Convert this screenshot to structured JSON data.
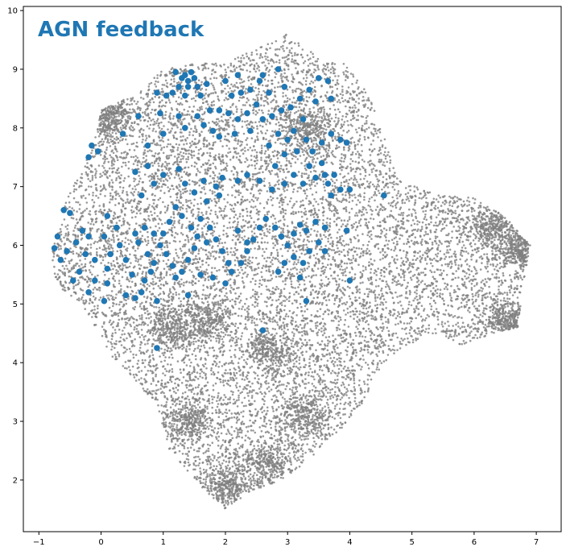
{
  "chart_data": {
    "type": "scatter",
    "title": "AGN feedback",
    "xlabel": "",
    "ylabel": "",
    "xlim": [
      -1.25,
      7.4
    ],
    "ylim": [
      1.12,
      10.07
    ],
    "x_ticks": [
      -1,
      0,
      1,
      2,
      3,
      4,
      5,
      6,
      7
    ],
    "y_ticks": [
      2,
      3,
      4,
      5,
      6,
      7,
      8,
      9,
      10
    ],
    "grid": false,
    "legend": "none",
    "colors": {
      "background_points": "#808080",
      "highlight_points": "#1f77b4",
      "title": "#1f77b4"
    },
    "series": [
      {
        "role": "background",
        "point_count_approx": 30000,
        "region_outline": [
          [
            -0.8,
            5.8
          ],
          [
            -0.6,
            6.7
          ],
          [
            -0.3,
            7.3
          ],
          [
            -0.1,
            7.8
          ],
          [
            0.0,
            8.3
          ],
          [
            0.6,
            8.6
          ],
          [
            1.0,
            9.0
          ],
          [
            1.5,
            9.1
          ],
          [
            2.0,
            9.1
          ],
          [
            2.6,
            9.4
          ],
          [
            3.0,
            9.6
          ],
          [
            3.5,
            9.2
          ],
          [
            3.9,
            9.1
          ],
          [
            4.3,
            8.6
          ],
          [
            4.6,
            7.7
          ],
          [
            4.8,
            7.1
          ],
          [
            5.3,
            6.9
          ],
          [
            6.0,
            6.8
          ],
          [
            6.5,
            6.5
          ],
          [
            6.9,
            6.0
          ],
          [
            6.8,
            5.4
          ],
          [
            6.7,
            4.6
          ],
          [
            6.3,
            4.5
          ],
          [
            5.8,
            4.3
          ],
          [
            5.4,
            4.5
          ],
          [
            4.9,
            4.3
          ],
          [
            4.5,
            3.9
          ],
          [
            4.2,
            3.3
          ],
          [
            3.8,
            2.8
          ],
          [
            3.3,
            2.3
          ],
          [
            2.9,
            2.0
          ],
          [
            2.4,
            1.8
          ],
          [
            2.0,
            1.5
          ],
          [
            1.6,
            1.9
          ],
          [
            1.1,
            2.5
          ],
          [
            0.9,
            3.3
          ],
          [
            0.3,
            3.9
          ],
          [
            0.0,
            4.4
          ],
          [
            -0.3,
            5.0
          ],
          [
            -0.7,
            5.3
          ]
        ],
        "dense_clusters": [
          {
            "x": 2.05,
            "y": 1.9
          },
          {
            "x": 2.7,
            "y": 2.3
          },
          {
            "x": 1.4,
            "y": 3.0
          },
          {
            "x": 3.3,
            "y": 3.1
          },
          {
            "x": 1.1,
            "y": 4.6
          },
          {
            "x": 1.7,
            "y": 4.7
          },
          {
            "x": 2.7,
            "y": 4.2
          },
          {
            "x": 6.6,
            "y": 4.7
          },
          {
            "x": 6.8,
            "y": 5.9
          },
          {
            "x": 6.3,
            "y": 6.3
          },
          {
            "x": 0.1,
            "y": 8.2
          },
          {
            "x": 3.3,
            "y": 8.0
          }
        ]
      },
      {
        "role": "highlight",
        "name": "AGN feedback",
        "points": [
          [
            1.2,
            8.95
          ],
          [
            1.3,
            8.85
          ],
          [
            1.35,
            8.9
          ],
          [
            1.4,
            8.8
          ],
          [
            1.45,
            8.95
          ],
          [
            1.4,
            8.7
          ],
          [
            1.5,
            8.85
          ],
          [
            1.25,
            8.7
          ],
          [
            1.55,
            8.7
          ],
          [
            1.15,
            8.6
          ],
          [
            1.6,
            8.55
          ],
          [
            1.35,
            8.55
          ],
          [
            1.05,
            8.55
          ],
          [
            0.9,
            8.6
          ],
          [
            1.7,
            8.75
          ],
          [
            2.0,
            8.8
          ],
          [
            2.2,
            8.9
          ],
          [
            2.25,
            8.6
          ],
          [
            2.1,
            8.55
          ],
          [
            2.4,
            8.65
          ],
          [
            2.55,
            8.8
          ],
          [
            2.6,
            8.9
          ],
          [
            2.85,
            9.0
          ],
          [
            2.95,
            8.7
          ],
          [
            2.7,
            8.6
          ],
          [
            2.5,
            8.4
          ],
          [
            2.35,
            8.25
          ],
          [
            2.2,
            8.15
          ],
          [
            2.05,
            8.25
          ],
          [
            1.9,
            8.3
          ],
          [
            1.75,
            8.3
          ],
          [
            1.65,
            8.05
          ],
          [
            1.8,
            7.95
          ],
          [
            1.9,
            7.85
          ],
          [
            2.15,
            7.9
          ],
          [
            2.4,
            7.95
          ],
          [
            2.6,
            8.15
          ],
          [
            2.75,
            8.2
          ],
          [
            2.9,
            8.3
          ],
          [
            3.05,
            8.35
          ],
          [
            3.2,
            8.5
          ],
          [
            3.35,
            8.65
          ],
          [
            3.5,
            8.85
          ],
          [
            3.65,
            8.8
          ],
          [
            3.7,
            8.5
          ],
          [
            3.45,
            8.45
          ],
          [
            3.25,
            8.15
          ],
          [
            3.1,
            7.95
          ],
          [
            3.0,
            7.8
          ],
          [
            2.85,
            7.9
          ],
          [
            2.7,
            7.7
          ],
          [
            3.3,
            7.8
          ],
          [
            3.4,
            7.6
          ],
          [
            3.55,
            7.75
          ],
          [
            3.7,
            7.9
          ],
          [
            3.85,
            7.8
          ],
          [
            3.95,
            7.75
          ],
          [
            3.15,
            7.6
          ],
          [
            2.95,
            7.55
          ],
          [
            2.8,
            7.35
          ],
          [
            3.35,
            7.35
          ],
          [
            3.55,
            7.4
          ],
          [
            3.45,
            7.15
          ],
          [
            3.6,
            7.2
          ],
          [
            3.65,
            7.05
          ],
          [
            3.75,
            7.2
          ],
          [
            3.7,
            6.85
          ],
          [
            3.85,
            6.95
          ],
          [
            3.25,
            7.05
          ],
          [
            3.1,
            7.2
          ],
          [
            2.95,
            7.05
          ],
          [
            2.75,
            6.95
          ],
          [
            2.55,
            7.1
          ],
          [
            2.35,
            7.2
          ],
          [
            2.2,
            7.1
          ],
          [
            1.95,
            7.15
          ],
          [
            1.85,
            7.0
          ],
          [
            1.65,
            7.1
          ],
          [
            1.9,
            6.85
          ],
          [
            1.7,
            6.75
          ],
          [
            1.5,
            6.9
          ],
          [
            1.35,
            7.05
          ],
          [
            1.25,
            7.3
          ],
          [
            1.0,
            7.2
          ],
          [
            0.75,
            7.35
          ],
          [
            0.55,
            7.25
          ],
          [
            0.85,
            7.05
          ],
          [
            0.65,
            6.85
          ],
          [
            1.25,
            8.2
          ],
          [
            0.6,
            8.2
          ],
          [
            0.35,
            7.9
          ],
          [
            0.75,
            7.7
          ],
          [
            1.0,
            7.9
          ],
          [
            -0.15,
            7.7
          ],
          [
            -0.05,
            7.6
          ],
          [
            -0.2,
            7.5
          ],
          [
            1.35,
            8.0
          ],
          [
            1.55,
            8.2
          ],
          [
            0.95,
            8.25
          ],
          [
            -0.7,
            6.15
          ],
          [
            -0.6,
            6.6
          ],
          [
            -0.5,
            6.55
          ],
          [
            -0.75,
            5.95
          ],
          [
            -0.65,
            5.75
          ],
          [
            -0.55,
            5.9
          ],
          [
            -0.4,
            6.05
          ],
          [
            -0.3,
            6.25
          ],
          [
            -0.2,
            6.15
          ],
          [
            -0.25,
            5.85
          ],
          [
            -0.1,
            5.75
          ],
          [
            -0.35,
            5.55
          ],
          [
            -0.45,
            5.4
          ],
          [
            -0.2,
            5.2
          ],
          [
            -0.1,
            5.4
          ],
          [
            0.05,
            5.05
          ],
          [
            0.1,
            5.35
          ],
          [
            0.1,
            5.6
          ],
          [
            0.15,
            5.85
          ],
          [
            0.05,
            6.15
          ],
          [
            0.1,
            6.5
          ],
          [
            0.25,
            6.3
          ],
          [
            0.3,
            6.0
          ],
          [
            0.4,
            5.75
          ],
          [
            0.5,
            5.5
          ],
          [
            0.4,
            5.15
          ],
          [
            0.55,
            5.1
          ],
          [
            0.65,
            5.2
          ],
          [
            0.7,
            5.4
          ],
          [
            0.8,
            5.55
          ],
          [
            0.85,
            5.7
          ],
          [
            0.75,
            5.85
          ],
          [
            0.6,
            6.05
          ],
          [
            0.55,
            6.2
          ],
          [
            0.7,
            6.3
          ],
          [
            0.85,
            6.2
          ],
          [
            0.95,
            6.0
          ],
          [
            1.05,
            5.85
          ],
          [
            1.15,
            5.65
          ],
          [
            1.2,
            5.45
          ],
          [
            1.3,
            5.55
          ],
          [
            1.4,
            5.75
          ],
          [
            1.5,
            5.95
          ],
          [
            1.55,
            6.15
          ],
          [
            1.45,
            6.3
          ],
          [
            1.3,
            6.5
          ],
          [
            1.2,
            6.65
          ],
          [
            1.1,
            6.4
          ],
          [
            1.0,
            6.2
          ],
          [
            1.6,
            6.45
          ],
          [
            1.75,
            6.3
          ],
          [
            1.85,
            6.1
          ],
          [
            1.95,
            5.9
          ],
          [
            2.05,
            5.7
          ],
          [
            2.1,
            5.55
          ],
          [
            2.25,
            5.7
          ],
          [
            2.35,
            5.9
          ],
          [
            2.45,
            6.1
          ],
          [
            2.55,
            6.3
          ],
          [
            2.65,
            6.45
          ],
          [
            2.8,
            6.3
          ],
          [
            2.9,
            6.15
          ],
          [
            3.0,
            6.0
          ],
          [
            3.1,
            6.2
          ],
          [
            3.2,
            6.35
          ],
          [
            3.3,
            6.25
          ],
          [
            3.45,
            6.4
          ],
          [
            3.6,
            6.3
          ],
          [
            3.5,
            6.05
          ],
          [
            3.35,
            5.9
          ],
          [
            3.25,
            5.7
          ],
          [
            3.1,
            5.8
          ],
          [
            2.95,
            5.7
          ],
          [
            2.85,
            5.55
          ],
          [
            3.2,
            5.45
          ],
          [
            3.3,
            5.05
          ],
          [
            3.6,
            5.9
          ],
          [
            2.0,
            5.35
          ],
          [
            1.8,
            5.45
          ],
          [
            1.6,
            5.5
          ],
          [
            1.4,
            5.15
          ],
          [
            0.9,
            5.05
          ],
          [
            0.9,
            4.25
          ],
          [
            2.6,
            4.55
          ],
          [
            4.0,
            5.4
          ],
          [
            4.55,
            6.85
          ],
          [
            4.0,
            6.95
          ],
          [
            3.95,
            6.25
          ],
          [
            1.7,
            6.05
          ],
          [
            2.2,
            6.25
          ],
          [
            2.35,
            6.05
          ]
        ]
      }
    ]
  }
}
